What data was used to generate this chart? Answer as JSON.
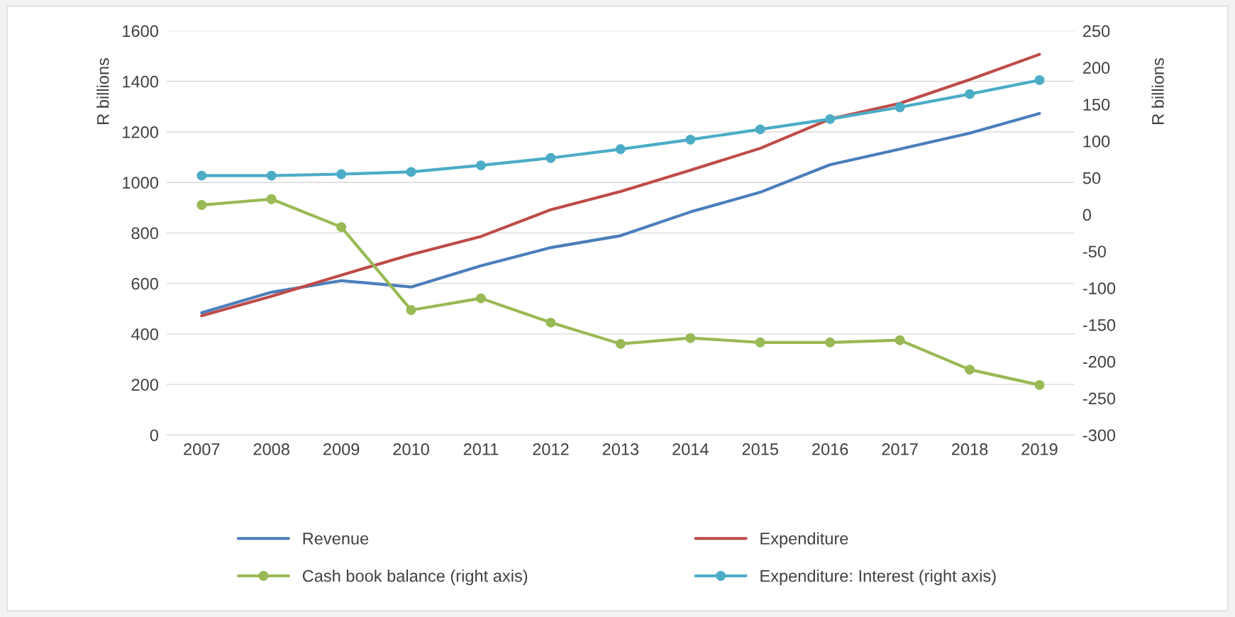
{
  "chart_data": {
    "type": "line",
    "categories": [
      "2007",
      "2008",
      "2009",
      "2010",
      "2011",
      "2012",
      "2013",
      "2014",
      "2015",
      "2016",
      "2017",
      "2018",
      "2019"
    ],
    "series": [
      {
        "name": "Revenue",
        "color": "#4a7ebb",
        "marker": "none",
        "values": [
          484,
          565,
          611,
          586,
          670,
          742,
          789,
          883,
          961,
          1070,
          1132,
          1195,
          1273
        ]
      },
      {
        "name": "Expenditure",
        "color": "#be4b48",
        "marker": "none",
        "values": [
          472,
          549,
          633,
          714,
          786,
          892,
          964,
          1048,
          1135,
          1251,
          1313,
          1407,
          1507
        ]
      },
      {
        "name": "Cash book balance (right axis)",
        "color": "#98b954",
        "marker": "circle",
        "axis": "y2",
        "values": [
          13,
          21,
          -17,
          -130,
          -114,
          -147,
          -176,
          -168,
          -174,
          -174,
          -171,
          -211,
          -232
        ]
      },
      {
        "name": "Expenditure: Interest (right axis)",
        "color": "#4bacc6",
        "marker": "circle",
        "axis": "y2",
        "values": [
          53,
          53,
          55,
          58,
          67,
          77,
          89,
          102,
          116,
          130,
          146,
          164,
          183
        ]
      }
    ],
    "ylabel": "R billions",
    "y2label": "R billions",
    "ylim": [
      0,
      1600
    ],
    "yticks": [
      0,
      200,
      400,
      600,
      800,
      1000,
      1200,
      1400,
      1600
    ],
    "y2lim": [
      -300,
      250
    ],
    "y2ticks": [
      -300,
      -250,
      -200,
      -150,
      -100,
      -50,
      0,
      50,
      100,
      150,
      200,
      250
    ],
    "grid": "y",
    "legend": "bottom",
    "line_style": "solid"
  }
}
